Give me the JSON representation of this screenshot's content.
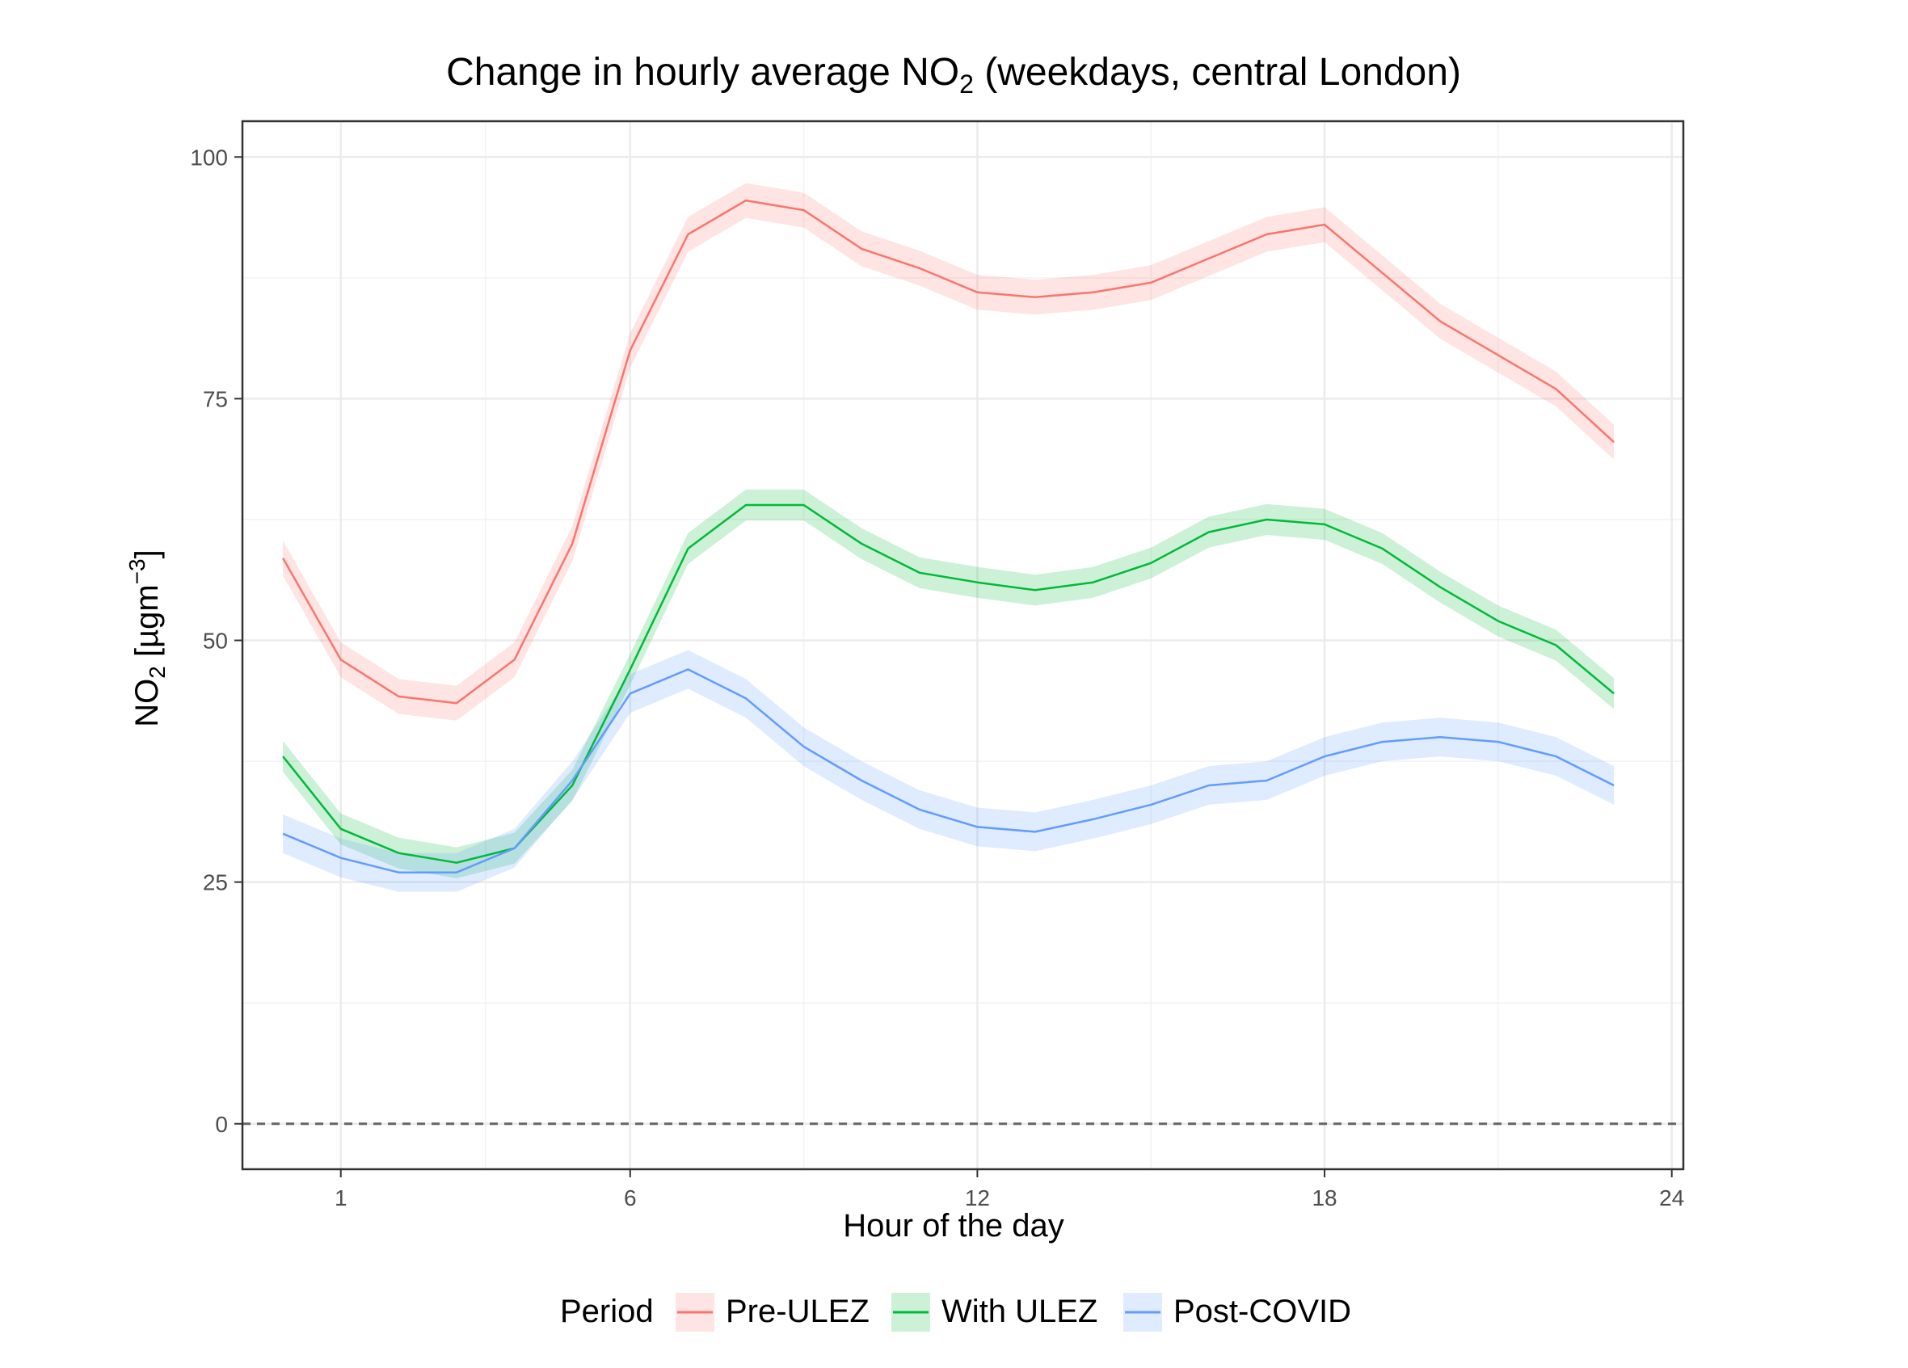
{
  "chart_data": {
    "type": "line",
    "title_main": "Change in hourly average NO",
    "title_sub": "2",
    "title_rest": " (weekdays, central London)",
    "xlabel": "Hour of the day",
    "ylabel_main": "NO",
    "ylabel_sub": "2",
    "ylabel_unit": " [µgm",
    "ylabel_sup": "−3",
    "ylabel_close": "]",
    "xlim": [
      -0.7,
      24.2
    ],
    "ylim": [
      -4.7,
      103.7
    ],
    "x_ticks": [
      1,
      6,
      12,
      18,
      24
    ],
    "x_tick_labels": [
      "1",
      "6",
      "12",
      "18",
      "24"
    ],
    "x_minor": [
      3.5,
      9,
      15,
      21
    ],
    "y_ticks": [
      0,
      25,
      50,
      75,
      100
    ],
    "y_tick_labels": [
      "0",
      "25",
      "50",
      "75",
      "100"
    ],
    "y_minor": [
      12.5,
      37.5,
      62.5,
      87.5
    ],
    "hline": 0,
    "grid": true,
    "legend_title": "Period",
    "legend_position": "bottom",
    "x": [
      0,
      1,
      2,
      3,
      4,
      5,
      6,
      7,
      8,
      9,
      10,
      11,
      12,
      13,
      14,
      15,
      16,
      17,
      18,
      19,
      20,
      21,
      22,
      23
    ],
    "series": [
      {
        "name": "Pre-ULEZ",
        "color": "#F8766D",
        "values": [
          58.5,
          48,
          44.2,
          43.5,
          48,
          60,
          80,
          92,
          95.5,
          94.5,
          90.5,
          88.5,
          86,
          85.5,
          86,
          87,
          89.5,
          92,
          93,
          88,
          83,
          79.5,
          76,
          70.5
        ],
        "band": 1.8
      },
      {
        "name": "With ULEZ",
        "color": "#00BA38",
        "values": [
          38,
          30.5,
          28,
          27,
          28.5,
          35,
          47,
          59.5,
          64,
          64,
          60,
          57,
          56,
          55.2,
          56,
          58,
          61.2,
          62.5,
          62,
          59.5,
          55.5,
          52,
          49.5,
          44.5
        ],
        "band": 1.6
      },
      {
        "name": "Post-COVID",
        "color": "#619CFF",
        "values": [
          30,
          27.5,
          26,
          26,
          28.5,
          35.5,
          44.5,
          47,
          44,
          39,
          35.5,
          32.5,
          30.7,
          30.2,
          31.5,
          33,
          35,
          35.5,
          38,
          39.5,
          40,
          39.5,
          38,
          35
        ],
        "band": 2.0
      }
    ]
  }
}
